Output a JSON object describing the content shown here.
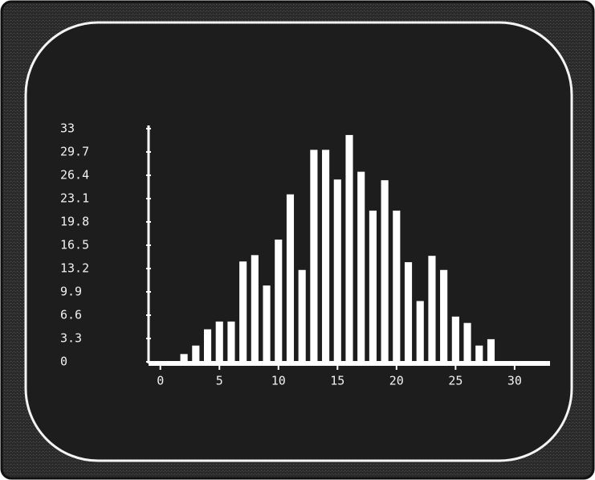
{
  "chart_data": {
    "type": "bar",
    "x": [
      2,
      3,
      4,
      5,
      6,
      7,
      8,
      9,
      10,
      11,
      12,
      13,
      14,
      15,
      16,
      17,
      18,
      19,
      20,
      21,
      22,
      23,
      24,
      25,
      26,
      27,
      28
    ],
    "values": [
      1.1,
      2.3,
      4.6,
      5.7,
      5.7,
      14.2,
      15.1,
      10.8,
      17.3,
      23.7,
      13,
      30,
      30,
      25.8,
      32.1,
      26.9,
      21.4,
      25.7,
      21.4,
      14.1,
      8.6,
      15,
      13,
      6.4,
      5.5,
      2.3,
      3.2
    ],
    "color": "#ffffff",
    "xlim": [
      -1,
      33
    ],
    "xticks": [
      0,
      5,
      10,
      15,
      20,
      25,
      30
    ],
    "ylim": [
      0,
      33
    ],
    "yticks": [
      0,
      3.3,
      6.6,
      9.9,
      13.2,
      16.5,
      19.8,
      23.1,
      26.4,
      29.7,
      33
    ]
  }
}
